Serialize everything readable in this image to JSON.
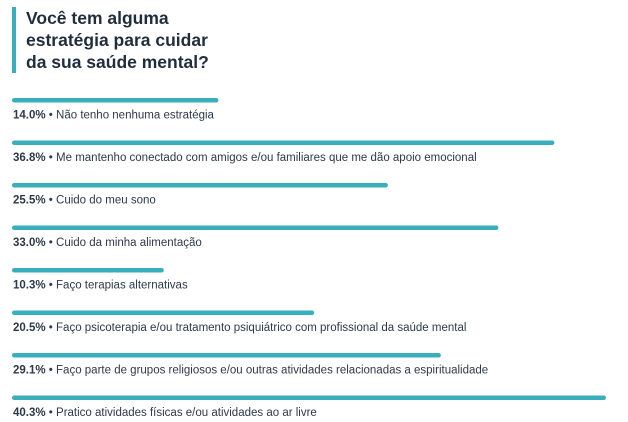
{
  "title": {
    "line1": "Você tem alguma",
    "line2": "estratégia para cuidar",
    "line3": "da sua saúde mental?"
  },
  "colors": {
    "bar": "#39aebc",
    "accent": "#39aebc",
    "text": "#1f2d3d"
  },
  "chart_data": {
    "type": "bar",
    "orientation": "horizontal",
    "title": "Você tem alguma estratégia para cuidar da sua saúde mental?",
    "xlabel": "",
    "ylabel": "",
    "xlim": [
      0,
      40.3
    ],
    "grid": false,
    "legend": "none",
    "categories": [
      "Não tenho nenhuma estratégia",
      "Me mantenho conectado com amigos e/ou familiares que me dão apoio emocional",
      "Cuido do meu sono",
      "Cuido da minha alimentação",
      "Faço terapias alternativas",
      "Faço psicoterapia e/ou tratamento psiquiátrico com profissional da saúde mental",
      "Faço parte de grupos religiosos e/ou outras atividades relacionadas a espiritualidade",
      "Pratico atividades físicas e/ou atividades ao ar livre"
    ],
    "values": [
      14.0,
      36.8,
      25.5,
      33.0,
      10.3,
      20.5,
      29.1,
      40.3
    ],
    "value_labels": [
      "14.0%",
      "36.8%",
      "25.5%",
      "33.0%",
      "10.3%",
      "20.5%",
      "29.1%",
      "40.3%"
    ]
  }
}
